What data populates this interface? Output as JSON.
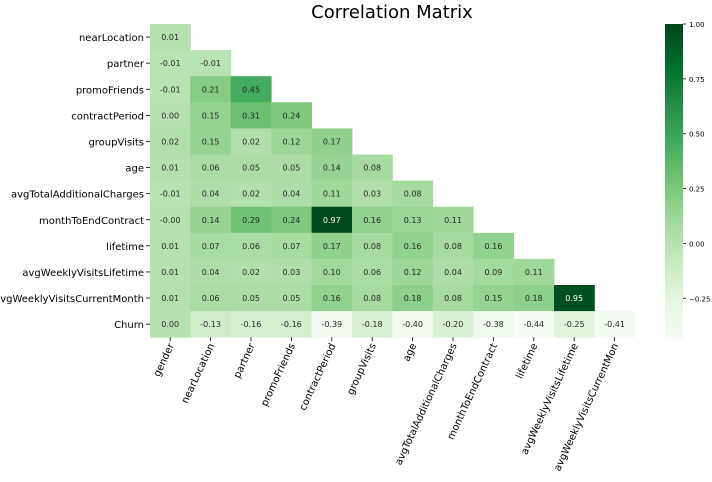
{
  "chart_data": {
    "type": "heatmap",
    "title": "Correlation Matrix",
    "row_labels": [
      "nearLocation",
      "partner",
      "promoFriends",
      "contractPeriod",
      "groupVisits",
      "age",
      "avgTotalAdditionalCharges",
      "monthToEndContract",
      "lifetime",
      "avgWeeklyVisitsLifetime",
      "avgWeeklyVisitsCurrentMonth",
      "Churn"
    ],
    "col_labels": [
      "gender",
      "nearLocation",
      "partner",
      "promoFriends",
      "contractPeriod",
      "groupVisits",
      "age",
      "avgTotalAdditionalCharges",
      "monthToEndContract",
      "lifetime",
      "avgWeeklyVisitsLifetime",
      "avgWeeklyVisitsCurrentMon"
    ],
    "values": [
      [
        0.01
      ],
      [
        -0.01,
        -0.01
      ],
      [
        -0.01,
        0.21,
        0.45
      ],
      [
        0.0,
        0.15,
        0.31,
        0.24
      ],
      [
        0.02,
        0.15,
        0.02,
        0.12,
        0.17
      ],
      [
        0.01,
        0.06,
        0.05,
        0.05,
        0.14,
        0.08
      ],
      [
        -0.01,
        0.04,
        0.02,
        0.04,
        0.11,
        0.03,
        0.08
      ],
      [
        -0.0,
        0.14,
        0.29,
        0.24,
        0.97,
        0.16,
        0.13,
        0.11
      ],
      [
        0.01,
        0.07,
        0.06,
        0.07,
        0.17,
        0.08,
        0.16,
        0.08,
        0.16
      ],
      [
        0.01,
        0.04,
        0.02,
        0.03,
        0.1,
        0.06,
        0.12,
        0.04,
        0.09,
        0.11
      ],
      [
        0.01,
        0.06,
        0.05,
        0.05,
        0.16,
        0.08,
        0.18,
        0.08,
        0.15,
        0.18,
        0.95
      ],
      [
        0.0,
        -0.13,
        -0.16,
        -0.16,
        -0.39,
        -0.18,
        -0.4,
        -0.2,
        -0.38,
        -0.44,
        -0.25,
        -0.41
      ]
    ],
    "value_labels": [
      [
        "0.01"
      ],
      [
        "-0.01",
        "-0.01"
      ],
      [
        "-0.01",
        "0.21",
        "0.45"
      ],
      [
        "0.00",
        "0.15",
        "0.31",
        "0.24"
      ],
      [
        "0.02",
        "0.15",
        "0.02",
        "0.12",
        "0.17"
      ],
      [
        "0.01",
        "0.06",
        "0.05",
        "0.05",
        "0.14",
        "0.08"
      ],
      [
        "-0.01",
        "0.04",
        "0.02",
        "0.04",
        "0.11",
        "0.03",
        "0.08"
      ],
      [
        "-0.00",
        "0.14",
        "0.29",
        "0.24",
        "0.97",
        "0.16",
        "0.13",
        "0.11"
      ],
      [
        "0.01",
        "0.07",
        "0.06",
        "0.07",
        "0.17",
        "0.08",
        "0.16",
        "0.08",
        "0.16"
      ],
      [
        "0.01",
        "0.04",
        "0.02",
        "0.03",
        "0.10",
        "0.06",
        "0.12",
        "0.04",
        "0.09",
        "0.11"
      ],
      [
        "0.01",
        "0.06",
        "0.05",
        "0.05",
        "0.16",
        "0.08",
        "0.18",
        "0.08",
        "0.15",
        "0.18",
        "0.95"
      ],
      [
        "0.00",
        "-0.13",
        "-0.16",
        "-0.16",
        "-0.39",
        "-0.18",
        "-0.40",
        "-0.20",
        "-0.38",
        "-0.44",
        "-0.25",
        "-0.41"
      ]
    ],
    "colormap": "Greens",
    "color_range": [
      -0.44,
      1.0
    ],
    "colorbar_ticks": [
      1.0,
      0.75,
      0.5,
      0.25,
      0.0,
      -0.25
    ],
    "colorbar_tick_labels": [
      "1.00",
      "0.75",
      "0.50",
      "0.25",
      "0.00",
      "−0.25"
    ],
    "mask": "upper-triangle",
    "grid": false,
    "legend": "colorbar-right"
  }
}
